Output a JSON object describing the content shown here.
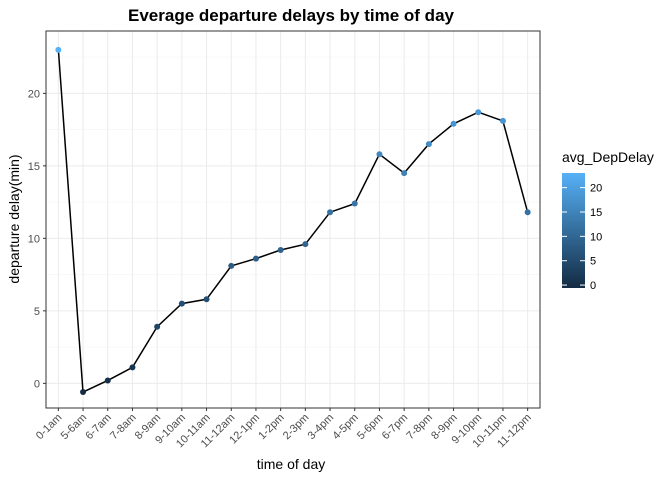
{
  "chart_data": {
    "type": "line",
    "title": "Everage departure delays by time of day",
    "xlabel": "time of day",
    "ylabel": "departure delay(min)",
    "categories": [
      "0-1am",
      "5-6am",
      "6-7am",
      "7-8am",
      "8-9am",
      "9-10am",
      "10-11am",
      "11-12am",
      "12-1pm",
      "1-2pm",
      "2-3pm",
      "3-4pm",
      "4-5pm",
      "5-6pm",
      "6-7pm",
      "7-8pm",
      "8-9pm",
      "9-10pm",
      "10-11pm",
      "11-12pm"
    ],
    "series": [
      {
        "values": [
          23.0,
          -0.6,
          0.2,
          1.1,
          3.9,
          5.5,
          5.8,
          8.1,
          8.6,
          9.2,
          9.6,
          11.8,
          12.4,
          15.8,
          14.5,
          16.5,
          17.9,
          18.7,
          18.1,
          11.8
        ]
      }
    ],
    "ylim": [
      -1.7,
      24.3
    ],
    "yticks": [
      0,
      5,
      10,
      15,
      20
    ],
    "grid": true,
    "legend": {
      "title": "avg_DepDelay",
      "position": "right",
      "ticks": [
        0,
        5,
        10,
        15,
        20
      ],
      "range": [
        -0.6,
        23.0
      ],
      "color_low": "#132B43",
      "color_high": "#56B1F7"
    },
    "line_color": "#000000",
    "panel_border_color": "#333333",
    "grid_color": "#ebebeb"
  }
}
